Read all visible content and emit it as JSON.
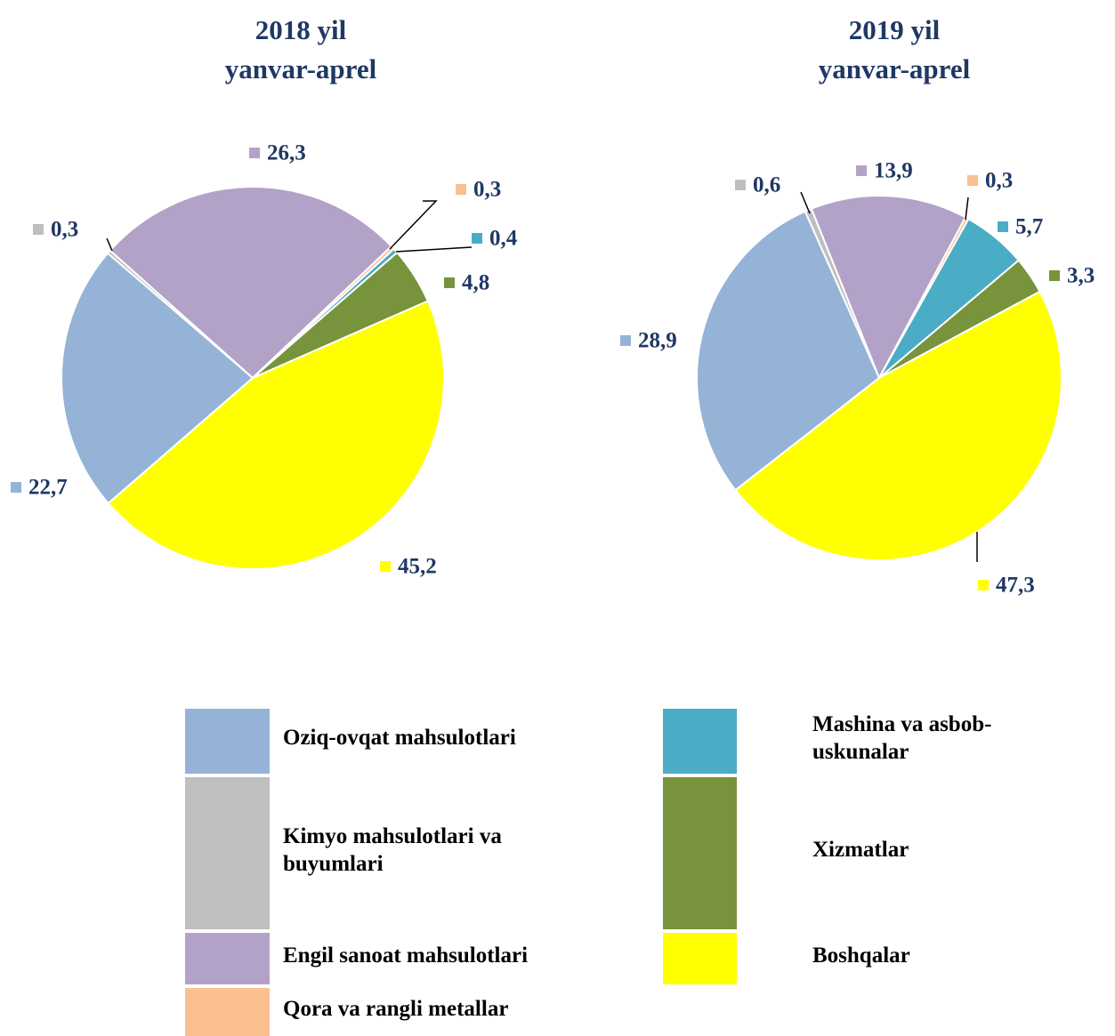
{
  "legend": {
    "categories": [
      "Oziq-ovqat mahsulotlari",
      "Kimyo mahsulotlari va buyumlari",
      "Engil sanoat mahsulotlari",
      "Qora va rangli metallar",
      "Mashina va asbob-uskunalar",
      "Xizmatlar",
      "Boshqalar"
    ],
    "colors": [
      "#95b3d7",
      "#bfbfbf",
      "#b3a2c7",
      "#fac090",
      "#4bacc6",
      "#77933c",
      "#ffff00"
    ]
  },
  "chart_data": [
    {
      "type": "pie",
      "title": "2018 yil",
      "subtitle": "yanvar-aprel",
      "values": [
        22.7,
        0.3,
        26.3,
        0.3,
        0.4,
        4.8,
        45.2
      ],
      "value_labels": [
        "22,7",
        "0,3",
        "26,3",
        "0,3",
        "0,4",
        "4,8",
        "45,2"
      ]
    },
    {
      "type": "pie",
      "title": "2019 yil",
      "subtitle": "yanvar-aprel",
      "values": [
        28.9,
        0.6,
        13.9,
        0.3,
        5.7,
        3.3,
        47.3
      ],
      "value_labels": [
        "28,9",
        "0,6",
        "13,9",
        "0,3",
        "5,7",
        "3,3",
        "47,3"
      ]
    }
  ]
}
